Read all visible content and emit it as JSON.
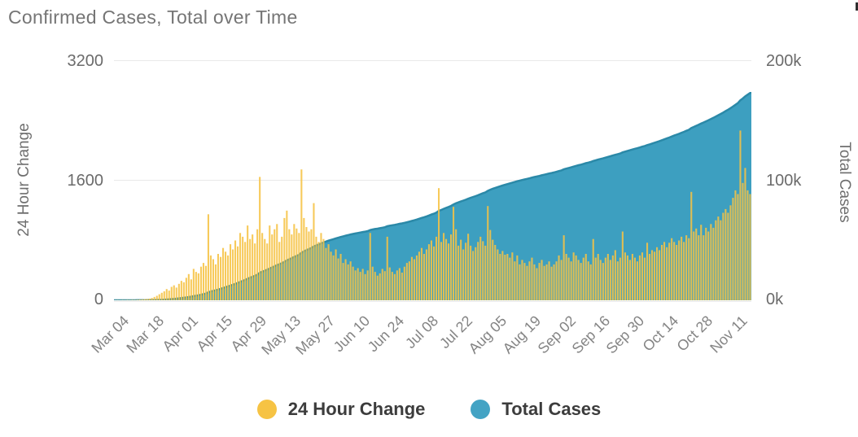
{
  "title": "Confirmed Cases, Total over Time",
  "left_axis": {
    "title": "24 Hour Change",
    "ticks": [
      "3200",
      "1600",
      "0"
    ]
  },
  "right_axis": {
    "title": "Total Cases",
    "ticks": [
      "200k",
      "100k",
      "0k"
    ]
  },
  "legend": [
    {
      "label": "24 Hour Change",
      "color": "#F6C344"
    },
    {
      "label": "Total Cases",
      "color": "#43A3C4"
    }
  ],
  "colors": {
    "bar_fill": "rgba(246,195,68,0.88)",
    "area_fill": "#3D9FC0",
    "area_stroke": "#2B89A8"
  },
  "chart_data": {
    "type": "combo",
    "subtype": [
      "bar",
      "area"
    ],
    "x_tick_labels": [
      "Mar 04",
      "Mar 18",
      "Apr 01",
      "Apr 15",
      "Apr 29",
      "May 13",
      "May 27",
      "Jun 10",
      "Jun 24",
      "Jul 08",
      "Jul 22",
      "Aug 05",
      "Aug 19",
      "Sep 02",
      "Sep 16",
      "Sep 30",
      "Oct 14",
      "Oct 28",
      "Nov 11"
    ],
    "x_tick_interval_days": 14,
    "n_days": 260,
    "left_ylim": [
      0,
      3200
    ],
    "right_ylim": [
      0,
      200000
    ],
    "grid": "horizontal",
    "legend_position": "bottom",
    "series": [
      {
        "name": "24 Hour Change",
        "type": "bar",
        "y_axis": "left",
        "values": [
          2,
          3,
          2,
          4,
          3,
          5,
          4,
          6,
          5,
          8,
          10,
          12,
          15,
          18,
          22,
          30,
          45,
          60,
          80,
          100,
          120,
          150,
          130,
          180,
          200,
          170,
          220,
          260,
          240,
          300,
          350,
          280,
          420,
          380,
          360,
          450,
          500,
          460,
          1150,
          600,
          550,
          480,
          620,
          580,
          700,
          650,
          600,
          750,
          680,
          800,
          720,
          900,
          850,
          780,
          1000,
          820,
          880,
          760,
          950,
          1650,
          900,
          820,
          760,
          1000,
          880,
          950,
          1020,
          780,
          850,
          1100,
          1200,
          950,
          880,
          1020,
          960,
          900,
          1750,
          1100,
          980,
          920,
          950,
          1300,
          850,
          780,
          900,
          820,
          700,
          750,
          650,
          600,
          680,
          560,
          620,
          500,
          550,
          480,
          520,
          450,
          400,
          430,
          380,
          420,
          350,
          400,
          900,
          450,
          380,
          330,
          360,
          420,
          390,
          850,
          440,
          380,
          350,
          400,
          430,
          370,
          450,
          500,
          520,
          580,
          550,
          600,
          650,
          700,
          620,
          680,
          750,
          800,
          720,
          850,
          1500,
          780,
          900,
          820,
          760,
          880,
          1250,
          950,
          730,
          810,
          680,
          770,
          890,
          730,
          660,
          710,
          780,
          850,
          790,
          730,
          1260,
          940,
          810,
          740,
          680,
          620,
          660,
          610,
          620,
          570,
          640,
          520,
          600,
          480,
          540,
          500,
          460,
          520,
          570,
          480,
          430,
          500,
          540,
          460,
          480,
          520,
          450,
          480,
          520,
          600,
          540,
          870,
          620,
          570,
          520,
          640,
          600,
          540,
          500,
          570,
          620,
          520,
          480,
          820,
          570,
          620,
          540,
          500,
          570,
          620,
          540,
          600,
          670,
          520,
          570,
          920,
          640,
          600,
          540,
          620,
          570,
          520,
          600,
          640,
          570,
          770,
          620,
          670,
          650,
          710,
          670,
          740,
          780,
          710,
          770,
          830,
          780,
          740,
          800,
          850,
          780,
          870,
          830,
          1450,
          920,
          960,
          870,
          1010,
          870,
          970,
          920,
          1020,
          970,
          1070,
          1120,
          1070,
          1170,
          1220,
          1170,
          1270,
          1370,
          1470,
          1420,
          2270,
          1570,
          1770,
          1470,
          1420
        ]
      },
      {
        "name": "Total Cases",
        "type": "area",
        "y_axis": "right",
        "derivation": "cumulative_sum_of_24_hour_change",
        "final_value_approx": 173000
      }
    ]
  }
}
